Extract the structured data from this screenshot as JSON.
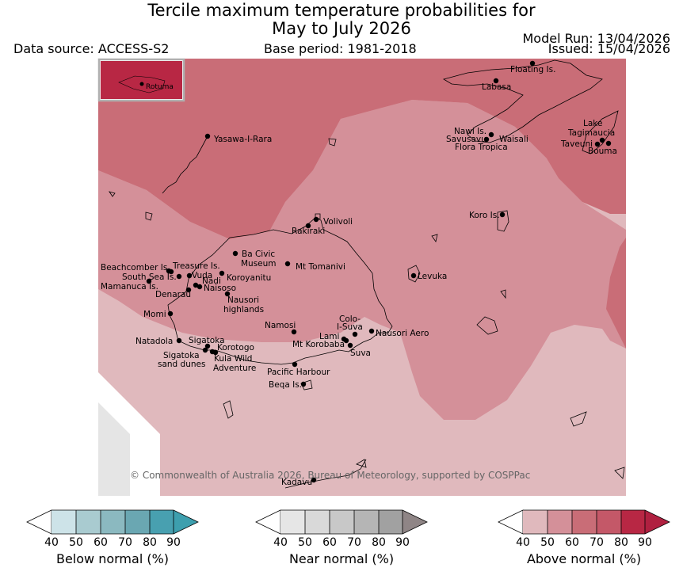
{
  "title": {
    "line1": "Tercile maximum temperature probabilities for",
    "line2": "May to July 2026"
  },
  "header": {
    "data_source": "Data source: ACCESS-S2",
    "base_period": "Base period: 1981-2018",
    "model_run": "Model Run: 13/04/2026",
    "issued": "Issued: 15/04/2026"
  },
  "map": {
    "inset_label": "Rotuma",
    "copyright": "© Commonwealth of Australia 2026, Bureau of Meteorology, supported by COSPPac",
    "places": [
      "Floating Is.",
      "Labasa",
      "Yasawa-I-Rara",
      "Nawi Is.",
      "Savusavu",
      "Waisali",
      "Flora Tropica",
      "Lake",
      "Tagimaucia",
      "Taveuni",
      "Bouma",
      "Koro Is.",
      "Volivoli",
      "Rakiraki",
      "Ba Civic",
      "Museum",
      "Mt Tomanivi",
      "Beachcomber Is.",
      "Treasure Is.",
      "South Sea Is.",
      "Vuda",
      "Koroyanitu",
      "Nadi",
      "Mamanuca Is.",
      "Naisoso",
      "Denarau",
      "Levuka",
      "Nausori",
      "highlands",
      "Momi",
      "Namosi",
      "Colo-",
      "I-Suva",
      "Nausori Aero",
      "Lami",
      "Mt Korobaba",
      "Natadola",
      "Sigatoka",
      "Korotogo",
      "Suva",
      "Sigatoka",
      "sand dunes",
      "Kula Wild",
      "Adventure",
      "Pacific Harbour",
      "Beqa Is.",
      "Kadavu"
    ]
  },
  "colors": {
    "above_40": "#e0b9bd",
    "above_50": "#d49099",
    "above_60": "#c96d77",
    "above_70": "#c45868",
    "above_80": "#b82744",
    "above_90": "#b02040",
    "no_data": "#e5e5e5"
  },
  "legends": [
    {
      "title": "Below normal (%)",
      "ticks": [
        "40",
        "50",
        "60",
        "70",
        "80",
        "90"
      ],
      "colors": [
        "#cde3e8",
        "#a9cbd0",
        "#8bb9c0",
        "#6aa7b2",
        "#48a0b0",
        "#3d9fae"
      ]
    },
    {
      "title": "Near normal (%)",
      "ticks": [
        "40",
        "50",
        "60",
        "70",
        "80",
        "90"
      ],
      "colors": [
        "#e6e6e6",
        "#d9d9d9",
        "#c8c8c8",
        "#b5b5b5",
        "#a1a1a1",
        "#8f8586"
      ]
    },
    {
      "title": "Above normal (%)",
      "ticks": [
        "40",
        "50",
        "60",
        "70",
        "80",
        "90"
      ],
      "colors": [
        "#e0b9bd",
        "#d49099",
        "#c96d77",
        "#c45868",
        "#b82744",
        "#b02040"
      ]
    }
  ]
}
